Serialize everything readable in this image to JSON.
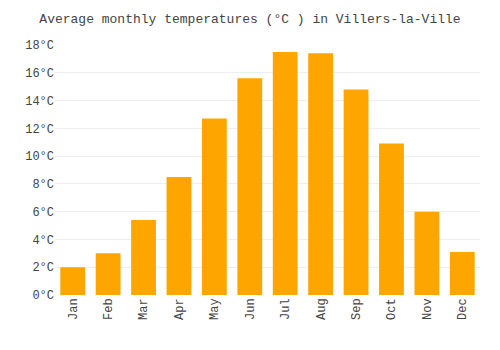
{
  "chart_data": {
    "type": "bar",
    "title": "Average monthly temperatures (°C ) in Villers-la-Ville",
    "categories": [
      "Jan",
      "Feb",
      "Mar",
      "Apr",
      "May",
      "Jun",
      "Jul",
      "Aug",
      "Sep",
      "Oct",
      "Nov",
      "Dec"
    ],
    "values": [
      2.0,
      3.0,
      5.4,
      8.5,
      12.7,
      15.6,
      17.5,
      17.4,
      14.8,
      10.9,
      6.0,
      3.1
    ],
    "color": "#FFA500",
    "ylim": [
      0,
      18
    ],
    "yticks": [
      {
        "value": 0,
        "label": "0°C"
      },
      {
        "value": 2,
        "label": "2°C"
      },
      {
        "value": 4,
        "label": "4°C"
      },
      {
        "value": 6,
        "label": "6°C"
      },
      {
        "value": 8,
        "label": "8°C"
      },
      {
        "value": 10,
        "label": "10°C"
      },
      {
        "value": 12,
        "label": "12°C"
      },
      {
        "value": 14,
        "label": "14°C"
      },
      {
        "value": 16,
        "label": "16°C"
      },
      {
        "value": 18,
        "label": "18°C"
      }
    ],
    "grid": true
  }
}
